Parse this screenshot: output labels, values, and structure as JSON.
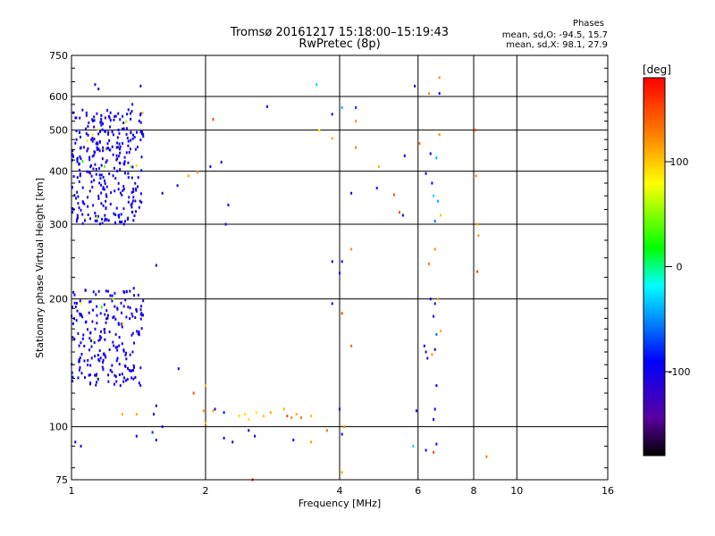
{
  "chart_data": {
    "type": "scatter",
    "title": "Tromsø 20161217 15:18:00–15:19:43",
    "subtitle": "RwPretec (8p)",
    "stats": {
      "heading": "Phases",
      "line1": "mean, sd,O: -94.5, 15.7",
      "line2": "mean, sd,X:  98.1, 27.9"
    },
    "xlabel": "Frequency [MHz]",
    "ylabel": "Stationary phase Virtual Height [km]",
    "x_scale": "log",
    "y_scale": "log",
    "xlim": [
      1,
      16
    ],
    "ylim": [
      75,
      750
    ],
    "x_ticks": [
      1,
      2,
      4,
      6,
      8,
      10,
      16
    ],
    "y_ticks": [
      75,
      100,
      200,
      300,
      400,
      500,
      600,
      750
    ],
    "x_gridlines": [
      2,
      4,
      6,
      8,
      10
    ],
    "y_gridlines": [
      100,
      200,
      300,
      400,
      500,
      600
    ],
    "colorbar": {
      "label": "[deg]",
      "range": [
        -180,
        180
      ],
      "ticks": [
        100,
        0,
        -100
      ],
      "colors": [
        "#000000",
        "#5a00a0",
        "#0000ff",
        "#00ffff",
        "#00ff00",
        "#ffff00",
        "#ff8000",
        "#ff0000"
      ]
    },
    "dense_clusters": [
      {
        "x_range": [
          1.0,
          1.45
        ],
        "y_range": [
          300,
          560
        ],
        "count": 320,
        "phase": -100
      },
      {
        "x_range": [
          1.0,
          1.45
        ],
        "y_range": [
          125,
          210
        ],
        "count": 220,
        "phase": -100
      }
    ],
    "points": [
      [
        1.13,
        640,
        -100
      ],
      [
        1.43,
        635,
        -100
      ],
      [
        1.15,
        625,
        -100
      ],
      [
        1.37,
        575,
        -100
      ],
      [
        2.75,
        568,
        -100
      ],
      [
        3.55,
        640,
        -30
      ],
      [
        4.05,
        565,
        -40
      ],
      [
        3.85,
        545,
        -100
      ],
      [
        4.35,
        565,
        -80
      ],
      [
        4.35,
        525,
        120
      ],
      [
        5.9,
        635,
        -100
      ],
      [
        6.7,
        610,
        -100
      ],
      [
        6.35,
        610,
        120
      ],
      [
        6.7,
        665,
        120
      ],
      [
        2.08,
        530,
        150
      ],
      [
        3.6,
        498,
        80
      ],
      [
        3.85,
        478,
        110
      ],
      [
        4.35,
        455,
        130
      ],
      [
        4.9,
        410,
        110
      ],
      [
        5.6,
        435,
        -100
      ],
      [
        6.05,
        465,
        130
      ],
      [
        6.4,
        440,
        -100
      ],
      [
        6.6,
        430,
        -40
      ],
      [
        6.7,
        488,
        120
      ],
      [
        8.05,
        500,
        150
      ],
      [
        1.83,
        390,
        110
      ],
      [
        1.92,
        398,
        120
      ],
      [
        2.17,
        420,
        -100
      ],
      [
        2.05,
        410,
        -100
      ],
      [
        1.6,
        355,
        -100
      ],
      [
        1.73,
        370,
        -100
      ],
      [
        4.25,
        355,
        -100
      ],
      [
        4.85,
        365,
        -110
      ],
      [
        5.3,
        352,
        150
      ],
      [
        5.45,
        320,
        150
      ],
      [
        5.55,
        315,
        -100
      ],
      [
        6.25,
        395,
        -100
      ],
      [
        6.45,
        375,
        -100
      ],
      [
        6.5,
        350,
        -30
      ],
      [
        6.65,
        340,
        -40
      ],
      [
        6.55,
        305,
        -60
      ],
      [
        6.75,
        315,
        100
      ],
      [
        8.1,
        390,
        120
      ],
      [
        8.15,
        300,
        110
      ],
      [
        8.2,
        282,
        120
      ],
      [
        2.22,
        300,
        -120
      ],
      [
        2.25,
        333,
        -100
      ],
      [
        4.25,
        262,
        120
      ],
      [
        4.05,
        245,
        -100
      ],
      [
        3.85,
        245,
        -100
      ],
      [
        4.0,
        230,
        -100
      ],
      [
        6.35,
        242,
        130
      ],
      [
        6.55,
        262,
        120
      ],
      [
        8.15,
        232,
        150
      ],
      [
        1.55,
        240,
        -100
      ],
      [
        1.38,
        212,
        -100
      ],
      [
        3.85,
        195,
        -100
      ],
      [
        4.05,
        185,
        150
      ],
      [
        6.4,
        200,
        -100
      ],
      [
        6.55,
        195,
        -100
      ],
      [
        6.65,
        200,
        110
      ],
      [
        6.5,
        182,
        -100
      ],
      [
        6.75,
        168,
        110
      ],
      [
        6.6,
        165,
        -60
      ],
      [
        4.25,
        155,
        140
      ],
      [
        6.2,
        155,
        -100
      ],
      [
        6.25,
        150,
        -100
      ],
      [
        6.45,
        148,
        120
      ],
      [
        6.55,
        152,
        -100
      ],
      [
        6.3,
        145,
        -110
      ],
      [
        6.6,
        125,
        -100
      ],
      [
        1.3,
        175,
        120
      ],
      [
        1.24,
        200,
        60
      ],
      [
        1.74,
        137,
        -100
      ],
      [
        2.0,
        125,
        110
      ],
      [
        1.88,
        120,
        150
      ],
      [
        6.55,
        110,
        -100
      ],
      [
        2.2,
        108,
        -100
      ],
      [
        1.55,
        112,
        -100
      ],
      [
        1.53,
        107,
        -100
      ],
      [
        1.6,
        100,
        -100
      ],
      [
        1.52,
        97,
        -80
      ],
      [
        1.55,
        93,
        -100
      ],
      [
        1.4,
        95,
        -100
      ],
      [
        1.3,
        107,
        110
      ],
      [
        1.4,
        107,
        110
      ],
      [
        2.0,
        102,
        110
      ],
      [
        2.5,
        98,
        -100
      ],
      [
        2.2,
        94,
        -100
      ],
      [
        2.3,
        92,
        -100
      ],
      [
        2.58,
        95,
        -100
      ],
      [
        3.15,
        93,
        -100
      ],
      [
        3.45,
        92,
        110
      ],
      [
        3.75,
        98,
        130
      ],
      [
        4.0,
        110,
        -100
      ],
      [
        4.05,
        96,
        -100
      ],
      [
        4.05,
        78,
        110
      ],
      [
        4.1,
        100,
        120
      ],
      [
        6.5,
        104,
        -100
      ],
      [
        6.5,
        87,
        150
      ],
      [
        6.6,
        91,
        -100
      ],
      [
        5.85,
        90,
        -30
      ],
      [
        6.25,
        88,
        -100
      ],
      [
        8.55,
        85,
        130
      ],
      [
        2.55,
        75,
        170
      ],
      [
        2.1,
        110,
        -100
      ],
      [
        1.02,
        92,
        -100
      ],
      [
        1.05,
        90,
        -100
      ],
      [
        2.38,
        106,
        90
      ],
      [
        2.45,
        107,
        90
      ],
      [
        2.5,
        104,
        90
      ],
      [
        2.6,
        108,
        90
      ],
      [
        2.7,
        106,
        100
      ],
      [
        2.8,
        108,
        110
      ],
      [
        3.05,
        106,
        150
      ],
      [
        3.12,
        105,
        120
      ],
      [
        3.2,
        107,
        110
      ],
      [
        3.28,
        105,
        130
      ],
      [
        3.45,
        106,
        100
      ],
      [
        1.98,
        109,
        120
      ],
      [
        2.08,
        109,
        110
      ],
      [
        3.0,
        110,
        110
      ],
      [
        4.0,
        110,
        -100
      ],
      [
        5.95,
        109,
        -100
      ]
    ]
  }
}
